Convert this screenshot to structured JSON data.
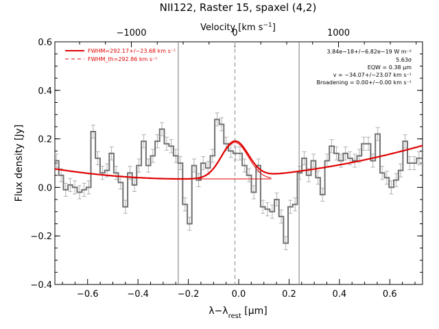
{
  "chart_data": {
    "type": "line",
    "title": "NII122, Raster 15, spaxel (4,2)",
    "xlabel": "λ−λrest [μm]",
    "ylabel": "Flux density [Jy]",
    "top_xlabel": "Velocity [km s⁻¹]",
    "xlim": [
      -0.73,
      0.73
    ],
    "ylim": [
      -0.4,
      0.6
    ],
    "xticks": [
      -0.6,
      -0.4,
      -0.2,
      0.0,
      0.2,
      0.4,
      0.6
    ],
    "xtick_labels": [
      "−0.6",
      "−0.4",
      "−0.2",
      "0.0",
      "0.2",
      "0.4",
      "0.6"
    ],
    "yticks": [
      -0.4,
      -0.2,
      0.0,
      0.2,
      0.4,
      0.6
    ],
    "ytick_labels": [
      "−0.4",
      "−0.2",
      "0.0",
      "0.2",
      "0.4",
      "0.6"
    ],
    "top_ticks_velocity": [
      -1000,
      0,
      1000
    ],
    "top_tick_labels": [
      "−1000",
      "0",
      "1000"
    ],
    "line_center_um": -0.015,
    "vertical_lines_um": [
      -0.24,
      0.24
    ],
    "grid": false,
    "legend_position": "top-left",
    "series": [
      {
        "name": "spectrum",
        "style": "steps-mid",
        "color": "#707070",
        "x": [
          -0.724,
          -0.705,
          -0.687,
          -0.669,
          -0.651,
          -0.632,
          -0.614,
          -0.596,
          -0.578,
          -0.56,
          -0.541,
          -0.523,
          -0.505,
          -0.487,
          -0.469,
          -0.45,
          -0.432,
          -0.414,
          -0.396,
          -0.377,
          -0.359,
          -0.341,
          -0.323,
          -0.305,
          -0.286,
          -0.268,
          -0.25,
          -0.232,
          -0.213,
          -0.195,
          -0.177,
          -0.159,
          -0.141,
          -0.122,
          -0.104,
          -0.086,
          -0.068,
          -0.05,
          -0.031,
          -0.013,
          0.005,
          0.023,
          0.041,
          0.06,
          0.078,
          0.096,
          0.114,
          0.133,
          0.151,
          0.169,
          0.187,
          0.205,
          0.224,
          0.242,
          0.26,
          0.278,
          0.297,
          0.315,
          0.333,
          0.351,
          0.369,
          0.388,
          0.406,
          0.424,
          0.442,
          0.461,
          0.479,
          0.497,
          0.515,
          0.533,
          0.552,
          0.57,
          0.588,
          0.606,
          0.625,
          0.643,
          0.661,
          0.679,
          0.697,
          0.716,
          0.728
        ],
        "y": [
          0.11,
          0.05,
          -0.01,
          0.01,
          0.0,
          -0.02,
          -0.01,
          0.0,
          0.23,
          0.12,
          0.06,
          0.07,
          0.14,
          0.06,
          0.02,
          -0.08,
          0.06,
          0.01,
          0.09,
          0.19,
          0.09,
          0.13,
          0.19,
          0.24,
          0.18,
          0.17,
          0.13,
          0.1,
          -0.07,
          -0.15,
          0.09,
          0.03,
          0.1,
          0.08,
          0.13,
          0.28,
          0.26,
          0.18,
          0.15,
          0.14,
          0.14,
          0.09,
          0.05,
          -0.02,
          0.09,
          -0.08,
          -0.09,
          -0.1,
          -0.05,
          -0.12,
          -0.23,
          -0.08,
          -0.07,
          0.06,
          0.12,
          0.05,
          0.11,
          0.04,
          -0.03,
          0.11,
          0.17,
          0.14,
          0.11,
          0.14,
          0.12,
          0.11,
          0.13,
          0.18,
          0.18,
          0.11,
          0.22,
          0.06,
          0.04,
          0.0,
          0.03,
          0.07,
          0.19,
          0.1,
          0.1,
          0.12,
          0.12
        ],
        "error": 0.027
      },
      {
        "name": "FWHM=292.17+/−23.68 km s⁻¹",
        "style": "solid",
        "color": "#e00000",
        "model": "gaussian_plus_quadratic",
        "amplitude": 0.15,
        "center_um": -0.015,
        "sigma_um": 0.053,
        "baseline_quadratic_coeffs": [
          0.035,
          0.01,
          0.155
        ],
        "baseline_vertex_um": -0.18
      },
      {
        "name": "FWHM_th=292.86 km s⁻¹",
        "style": "dashed",
        "color": "#e00000"
      }
    ],
    "annotations": [
      "3.84e−18+/−6.82e−19 W m⁻²",
      "5.63σ",
      "EQW = 0.38 μm",
      "v = −34.07+/−23.07 km s⁻¹",
      "Broadening = 0.00+/−0.00 km s⁻¹"
    ]
  }
}
